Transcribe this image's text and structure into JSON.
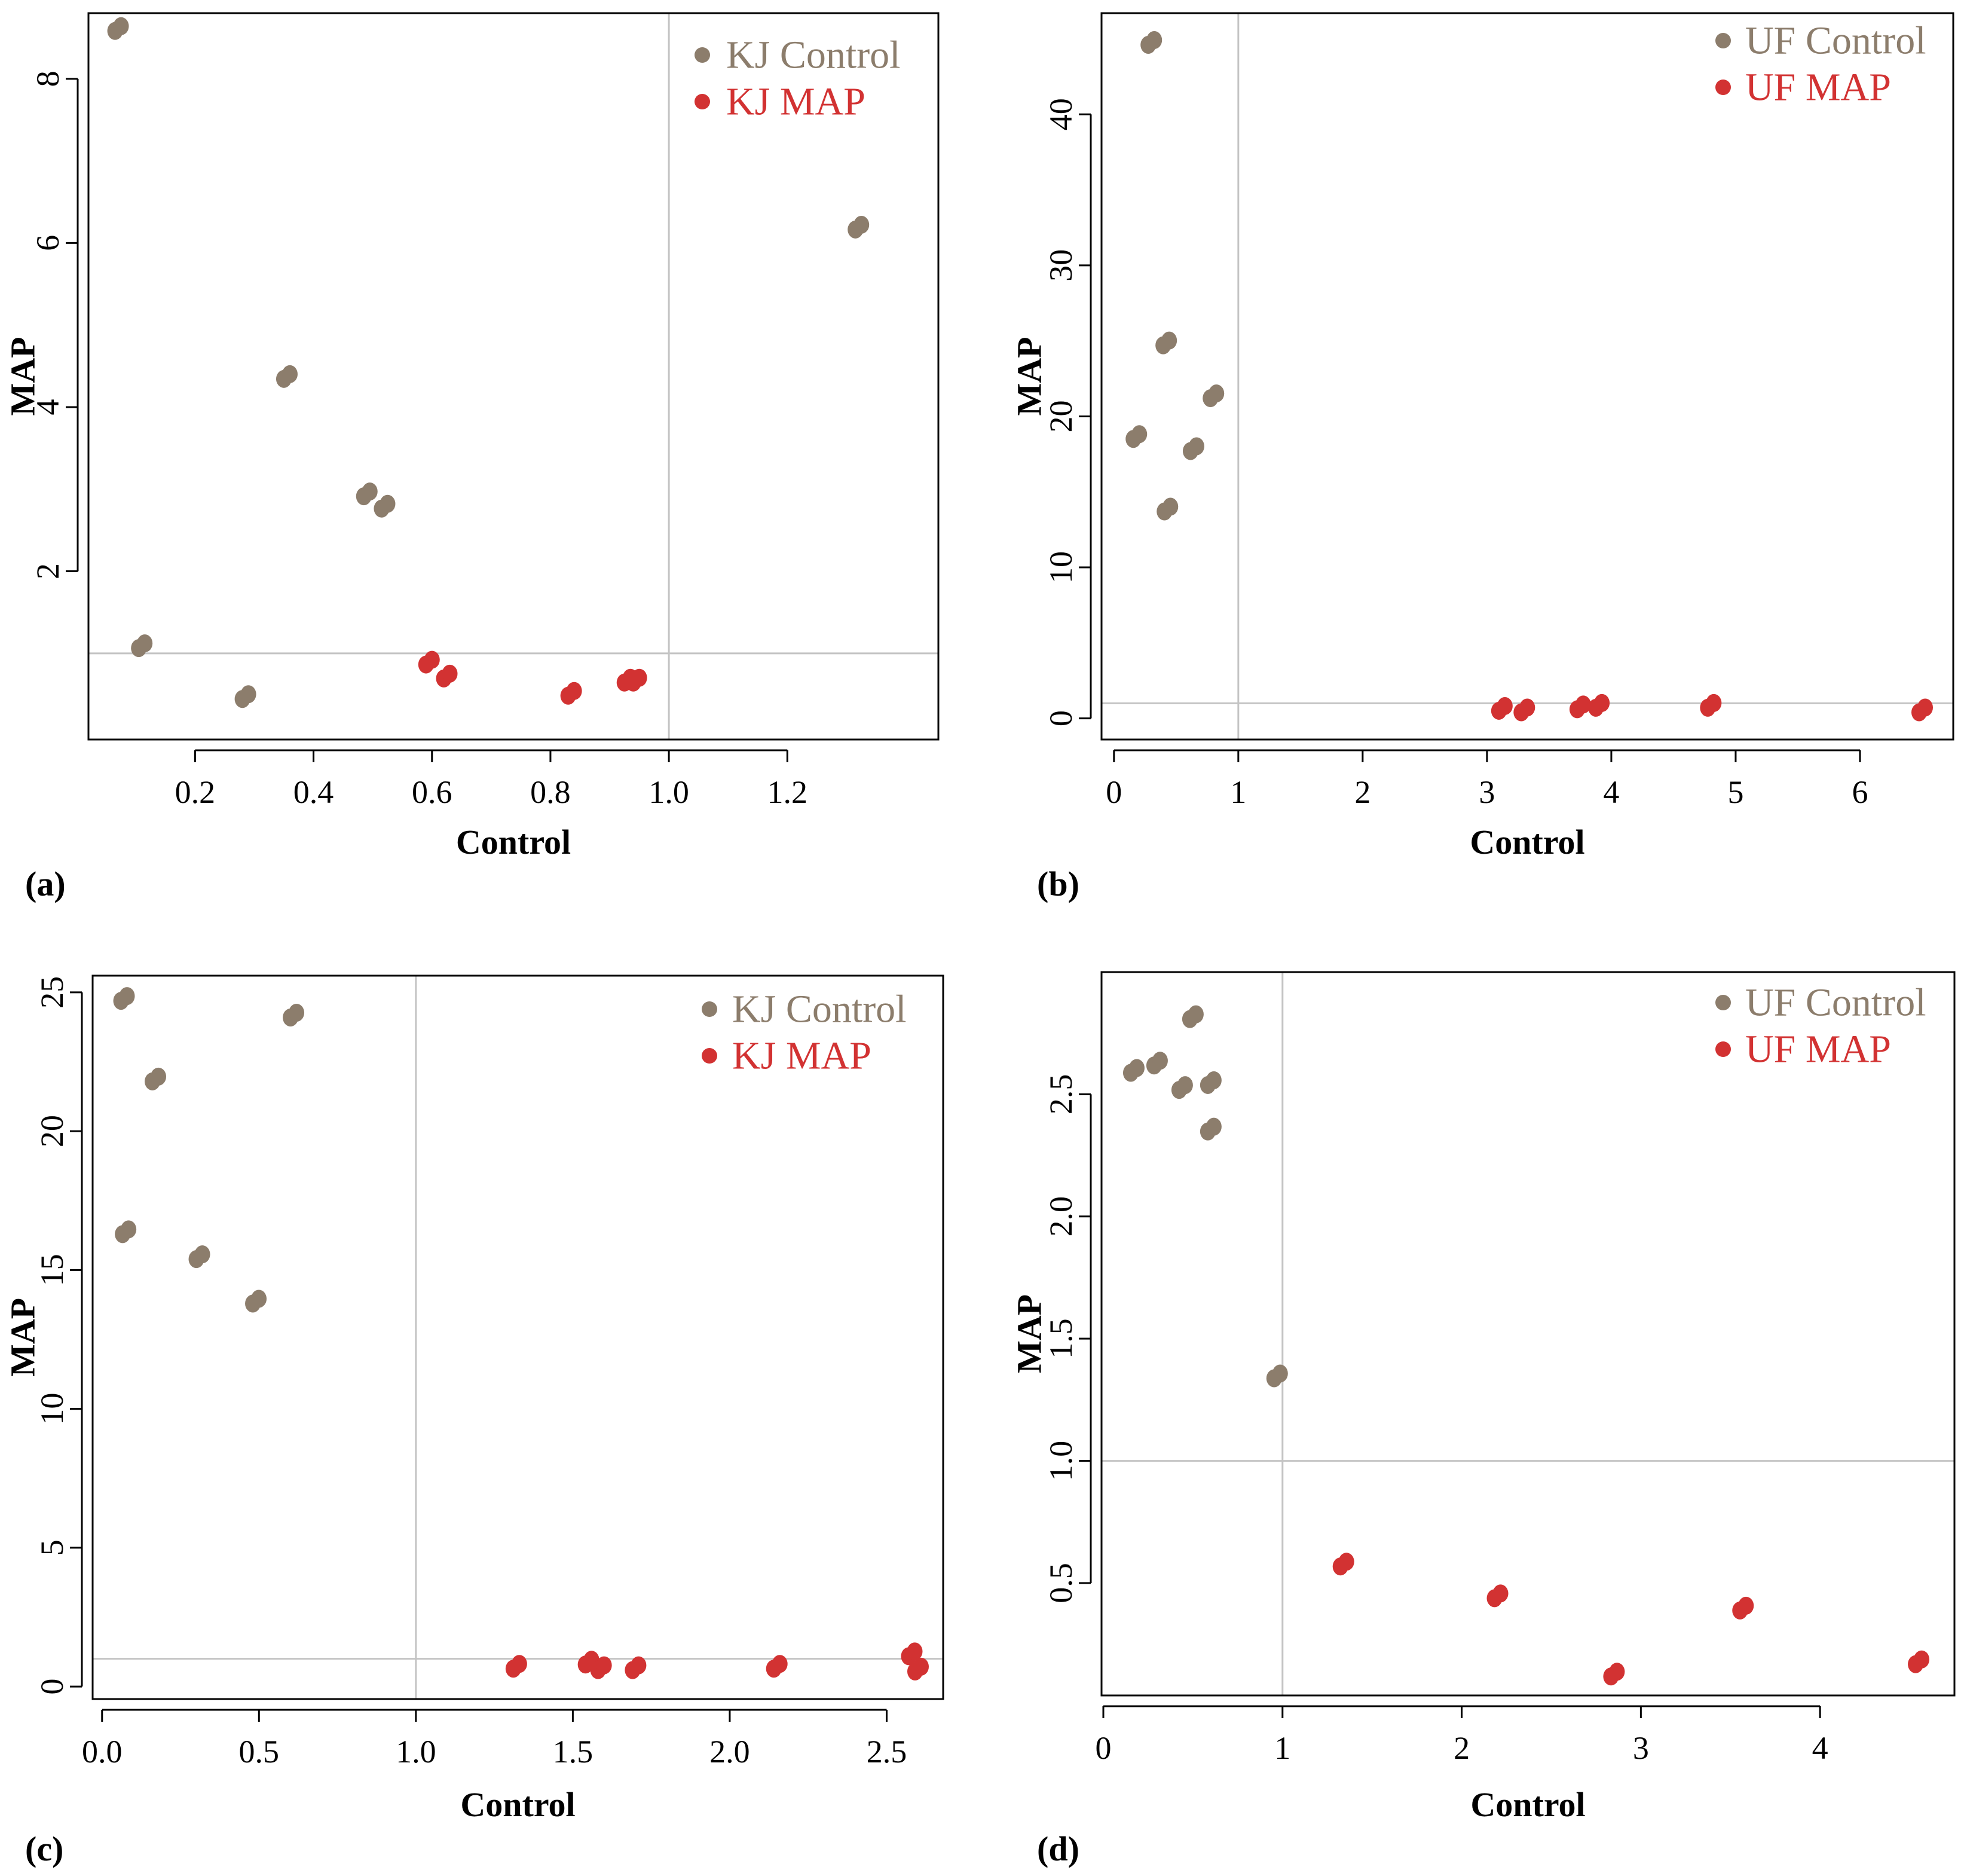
{
  "colors": {
    "control": "#8c7d6c",
    "map": "#d23232",
    "frame": "#000000",
    "refline": "#c4c4c4"
  },
  "chart_data": [
    {
      "type": "scatter",
      "panel": "(a)",
      "xlabel": "Control",
      "ylabel": "MAP",
      "xlim": [
        0.02,
        1.455
      ],
      "ylim": [
        -0.05,
        8.8
      ],
      "xticks": [
        0.2,
        0.4,
        0.6,
        0.8,
        1.0,
        1.2
      ],
      "xtick_labels": [
        "0.2",
        "0.4",
        "0.6",
        "0.8",
        "1.0",
        "1.2"
      ],
      "yticks": [
        2,
        4,
        6,
        8
      ],
      "ytick_labels": [
        "2",
        "4",
        "6",
        "8"
      ],
      "ref_x": 1.0,
      "ref_y": 1.0,
      "legend_position": "top-right",
      "series": [
        {
          "name": "KJ Control",
          "color_key": "control",
          "points": [
            [
              0.07,
              8.62
            ],
            [
              0.11,
              1.1
            ],
            [
              0.285,
              0.48
            ],
            [
              0.355,
              4.38
            ],
            [
              0.49,
              2.95
            ],
            [
              0.52,
              2.8
            ],
            [
              1.32,
              6.2
            ]
          ]
        },
        {
          "name": "KJ MAP",
          "color_key": "map",
          "points": [
            [
              0.595,
              0.9
            ],
            [
              0.625,
              0.73
            ],
            [
              0.835,
              0.52
            ],
            [
              0.93,
              0.68
            ],
            [
              0.945,
              0.68
            ]
          ]
        }
      ]
    },
    {
      "type": "scatter",
      "panel": "(b)",
      "xlabel": "Control",
      "ylabel": "MAP",
      "xlim": [
        -0.1,
        6.75
      ],
      "ylim": [
        -1.4,
        46.7
      ],
      "xticks": [
        0,
        1,
        2,
        3,
        4,
        5,
        6
      ],
      "xtick_labels": [
        "0",
        "1",
        "2",
        "3",
        "4",
        "5",
        "6"
      ],
      "yticks": [
        0,
        10,
        20,
        30,
        40
      ],
      "ytick_labels": [
        "0",
        "10",
        "20",
        "30",
        "40"
      ],
      "ref_x": 1.0,
      "ref_y": 1.0,
      "legend_position": "top-right",
      "series": [
        {
          "name": "UF Control",
          "color_key": "control",
          "points": [
            [
              0.3,
              44.8
            ],
            [
              0.18,
              18.7
            ],
            [
              0.42,
              24.9
            ],
            [
              0.8,
              21.4
            ],
            [
              0.64,
              17.9
            ],
            [
              0.43,
              13.9
            ]
          ]
        },
        {
          "name": "UF MAP",
          "color_key": "map",
          "points": [
            [
              3.12,
              0.7
            ],
            [
              3.3,
              0.6
            ],
            [
              3.75,
              0.8
            ],
            [
              3.9,
              0.9
            ],
            [
              4.8,
              0.9
            ],
            [
              6.5,
              0.6
            ]
          ]
        }
      ]
    },
    {
      "type": "scatter",
      "panel": "(c)",
      "xlabel": "Control",
      "ylabel": "MAP",
      "xlim": [
        -0.03,
        2.68
      ],
      "ylim": [
        -0.45,
        25.6
      ],
      "xticks": [
        0.0,
        0.5,
        1.0,
        1.5,
        2.0,
        2.5
      ],
      "xtick_labels": [
        "0.0",
        "0.5",
        "1.0",
        "1.5",
        "2.0",
        "2.5"
      ],
      "yticks": [
        0,
        5,
        10,
        15,
        20,
        25
      ],
      "ytick_labels": [
        "0",
        "5",
        "10",
        "15",
        "20",
        "25"
      ],
      "ref_x": 1.0,
      "ref_y": 1.0,
      "legend_position": "top-right",
      "series": [
        {
          "name": "KJ Control",
          "color_key": "control",
          "points": [
            [
              0.07,
              24.8
            ],
            [
              0.17,
              21.9
            ],
            [
              0.075,
              16.4
            ],
            [
              0.31,
              15.5
            ],
            [
              0.49,
              13.9
            ],
            [
              0.61,
              24.2
            ]
          ]
        },
        {
          "name": "KJ MAP",
          "color_key": "map",
          "points": [
            [
              1.32,
              0.75
            ],
            [
              1.55,
              0.9
            ],
            [
              1.59,
              0.7
            ],
            [
              1.7,
              0.7
            ],
            [
              2.15,
              0.75
            ],
            [
              2.58,
              1.2
            ],
            [
              2.6,
              0.65
            ]
          ]
        }
      ]
    },
    {
      "type": "scatter",
      "panel": "(d)",
      "xlabel": "Control",
      "ylabel": "MAP",
      "xlim": [
        -0.01,
        4.75
      ],
      "ylim": [
        0.04,
        3.0
      ],
      "xticks": [
        0,
        1,
        2,
        3,
        4
      ],
      "xtick_labels": [
        "0",
        "1",
        "2",
        "3",
        "4"
      ],
      "yticks": [
        0.5,
        1.0,
        1.5,
        2.0,
        2.5
      ],
      "ytick_labels": [
        "0.5",
        "1.0",
        "1.5",
        "2.0",
        "2.5"
      ],
      "ref_x": 1.0,
      "ref_y": 1.0,
      "legend_position": "top-right",
      "series": [
        {
          "name": "UF Control",
          "color_key": "control",
          "points": [
            [
              0.17,
              2.6
            ],
            [
              0.3,
              2.63
            ],
            [
              0.44,
              2.53
            ],
            [
              0.5,
              2.82
            ],
            [
              0.6,
              2.55
            ],
            [
              0.6,
              2.36
            ],
            [
              0.97,
              1.35
            ]
          ]
        },
        {
          "name": "UF MAP",
          "color_key": "map",
          "points": [
            [
              1.34,
              0.58
            ],
            [
              2.2,
              0.45
            ],
            [
              2.85,
              0.13
            ],
            [
              3.57,
              0.4
            ],
            [
              4.55,
              0.18
            ]
          ]
        }
      ]
    }
  ]
}
